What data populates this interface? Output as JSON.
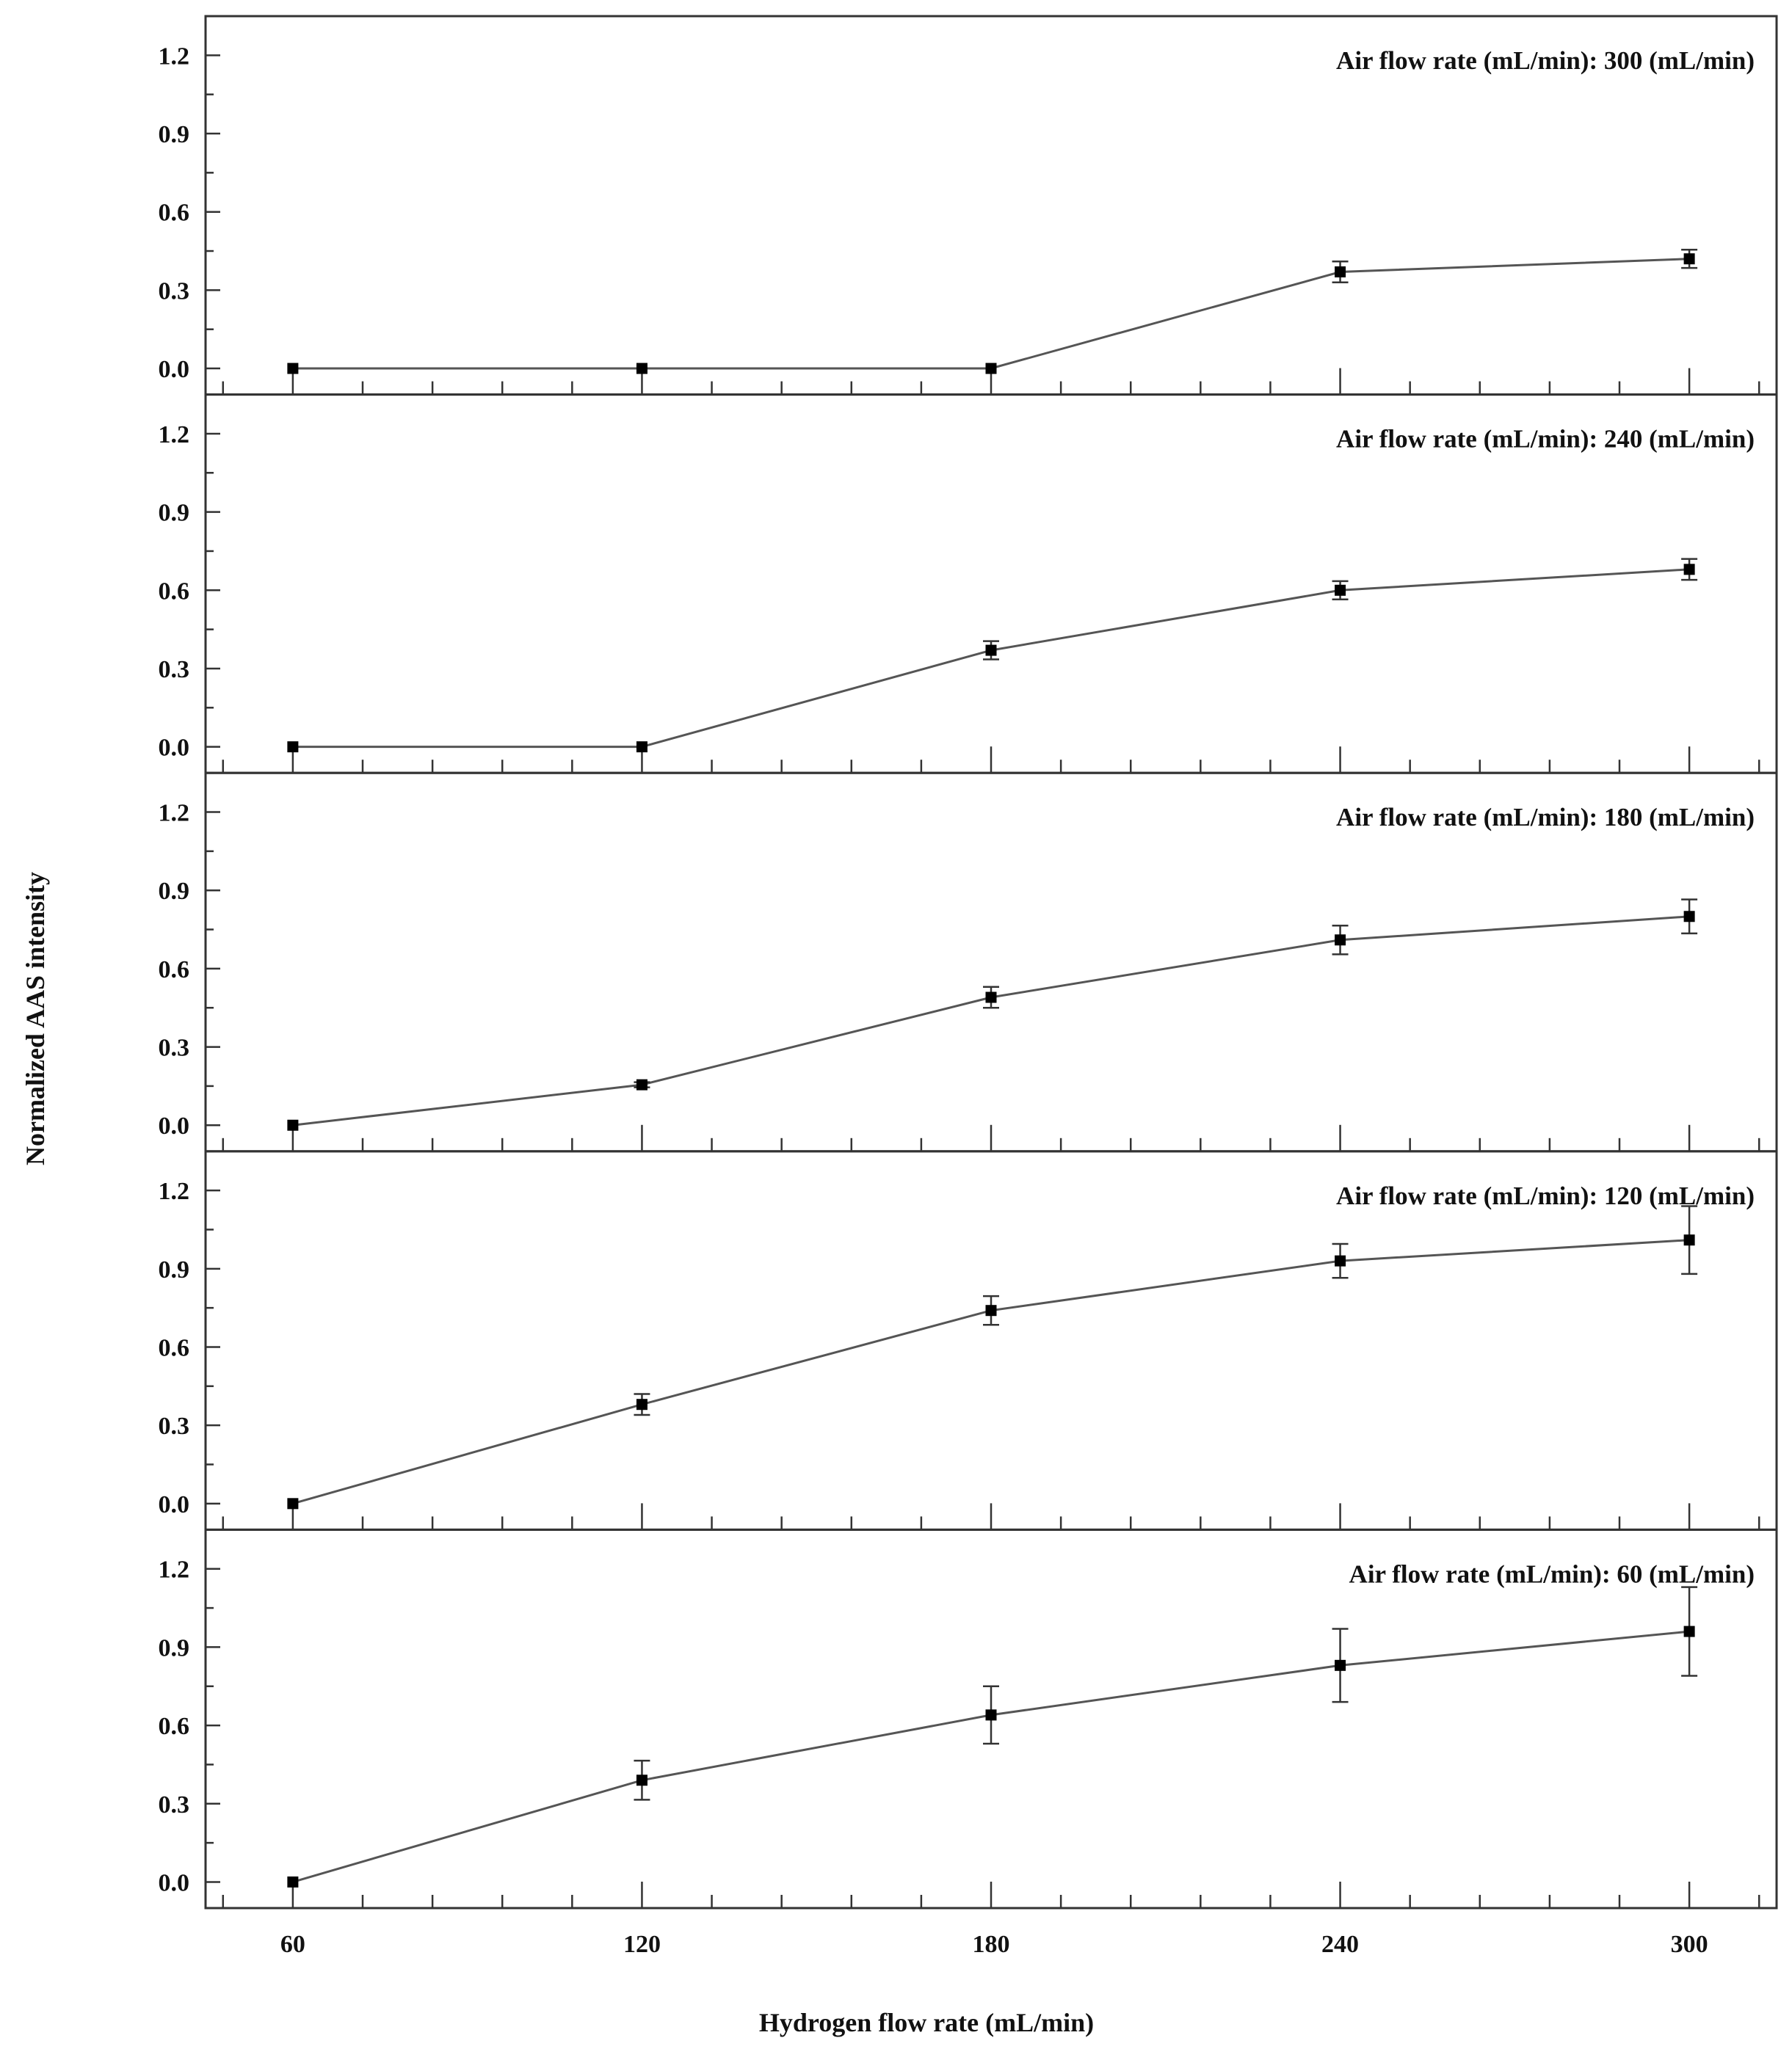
{
  "chart_data": {
    "type": "line",
    "layout": "stacked-panels-shared-x",
    "xlabel": "Hydrogen flow rate (mL/min)",
    "ylabel": "Normalized AAS intensity",
    "x": [
      60,
      120,
      180,
      240,
      300
    ],
    "x_ticks": [
      "60",
      "120",
      "180",
      "240",
      "300"
    ],
    "xlim": [
      45,
      315
    ],
    "ylim": [
      -0.1,
      1.35
    ],
    "y_ticks": [
      "0.0",
      "0.3",
      "0.6",
      "0.9",
      "1.2"
    ],
    "y_tick_values": [
      0.0,
      0.3,
      0.6,
      0.9,
      1.2
    ],
    "grid": false,
    "panels": [
      {
        "label": "Air flow rate (mL/min): 300 (mL/min)",
        "values": [
          0.0,
          0.0,
          0.0,
          0.37,
          0.42
        ],
        "errors": [
          0.0,
          0.0,
          0.0,
          0.04,
          0.035
        ]
      },
      {
        "label": "Air flow rate (mL/min): 240 (mL/min)",
        "values": [
          0.0,
          0.0,
          0.37,
          0.6,
          0.68
        ],
        "errors": [
          0.0,
          0.0,
          0.035,
          0.035,
          0.04
        ]
      },
      {
        "label": "Air flow rate (mL/min): 180 (mL/min)",
        "values": [
          0.0,
          0.155,
          0.49,
          0.71,
          0.8
        ],
        "errors": [
          0.0,
          0.01,
          0.04,
          0.055,
          0.065
        ]
      },
      {
        "label": "Air flow rate (mL/min): 120 (mL/min)",
        "values": [
          0.0,
          0.38,
          0.74,
          0.93,
          1.01
        ],
        "errors": [
          0.0,
          0.04,
          0.055,
          0.065,
          0.13
        ]
      },
      {
        "label": "Air flow rate (mL/min): 60  (mL/min)",
        "values": [
          0.0,
          0.39,
          0.64,
          0.83,
          0.96
        ],
        "errors": [
          0.0,
          0.075,
          0.11,
          0.14,
          0.17
        ]
      }
    ]
  }
}
